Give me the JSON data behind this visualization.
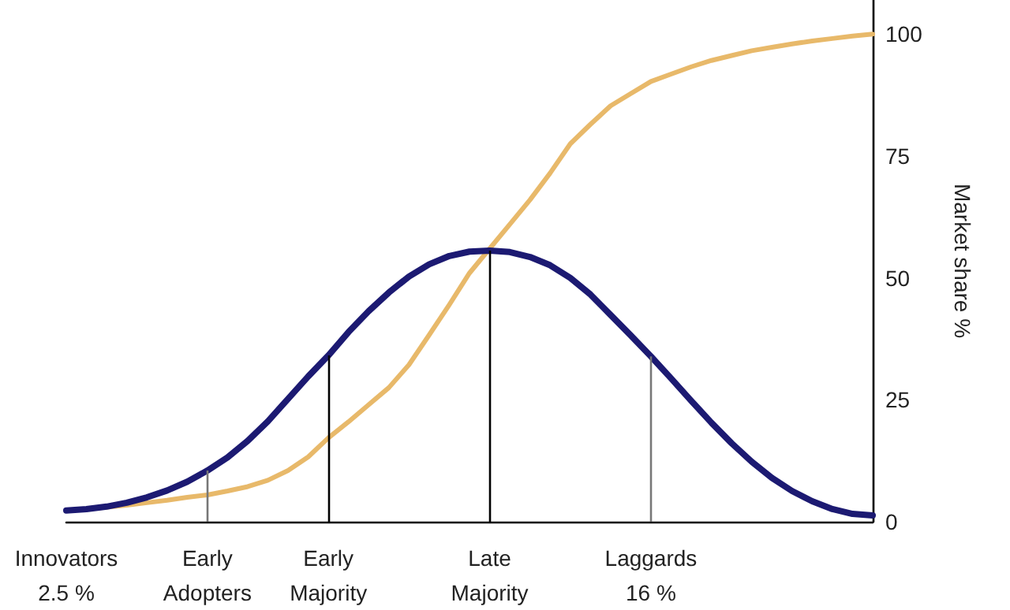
{
  "chart_data": {
    "type": "line",
    "ylabel": "Market share %",
    "ylim": [
      0,
      107
    ],
    "yticks": [
      0,
      25,
      50,
      75,
      100
    ],
    "grid": false,
    "marker": "none",
    "line_style": "solid",
    "categories": [
      "Innovators\n2.5 %",
      null,
      null,
      null,
      null,
      null,
      null,
      "Early\nAdopters",
      null,
      null,
      null,
      null,
      null,
      "Early\nMajority",
      null,
      null,
      null,
      null,
      null,
      null,
      null,
      "Late\nMajority",
      null,
      null,
      null,
      null,
      null,
      null,
      null,
      "Laggards\n16 %",
      null,
      null,
      null,
      null,
      null,
      null,
      null,
      null,
      null,
      null,
      null
    ],
    "series": [
      {
        "color": "#e8b96a",
        "values": [
          2.3,
          2.6,
          3.0,
          3.4,
          3.9,
          4.4,
          5.0,
          5.5,
          6.3,
          7.2,
          8.5,
          10.5,
          13.3,
          17.2,
          20.5,
          24.0,
          27.5,
          32.2,
          38.3,
          44.5,
          51.0,
          56.0,
          61.0,
          66.0,
          71.5,
          77.5,
          81.5,
          85.3,
          87.8,
          90.3,
          91.8,
          93.3,
          94.6,
          95.6,
          96.6,
          97.3,
          98.0,
          98.6,
          99.1,
          99.6,
          100
        ]
      },
      {
        "color": "#1c1a72",
        "values": [
          2.3,
          2.6,
          3.1,
          3.9,
          5.0,
          6.4,
          8.2,
          10.5,
          13.2,
          16.6,
          20.6,
          25.2,
          29.8,
          34.1,
          38.9,
          43.2,
          47.0,
          50.3,
          52.8,
          54.5,
          55.4,
          55.6,
          55.3,
          54.3,
          52.6,
          50.0,
          46.6,
          42.4,
          38.2,
          33.9,
          29.4,
          24.8,
          20.3,
          16.1,
          12.3,
          9.0,
          6.3,
          4.2,
          2.6,
          1.6,
          1.3
        ]
      }
    ],
    "ref_lines": [
      {
        "axis": "x",
        "value": "Early\nAdopters",
        "color": "#777777"
      },
      {
        "axis": "x",
        "value": "Early\nMajority",
        "color": "#000000"
      },
      {
        "axis": "x",
        "value": "Late\nMajority",
        "color": "#000000"
      },
      {
        "axis": "x",
        "value": "Laggards\n16 %",
        "color": "#777777"
      }
    ]
  }
}
